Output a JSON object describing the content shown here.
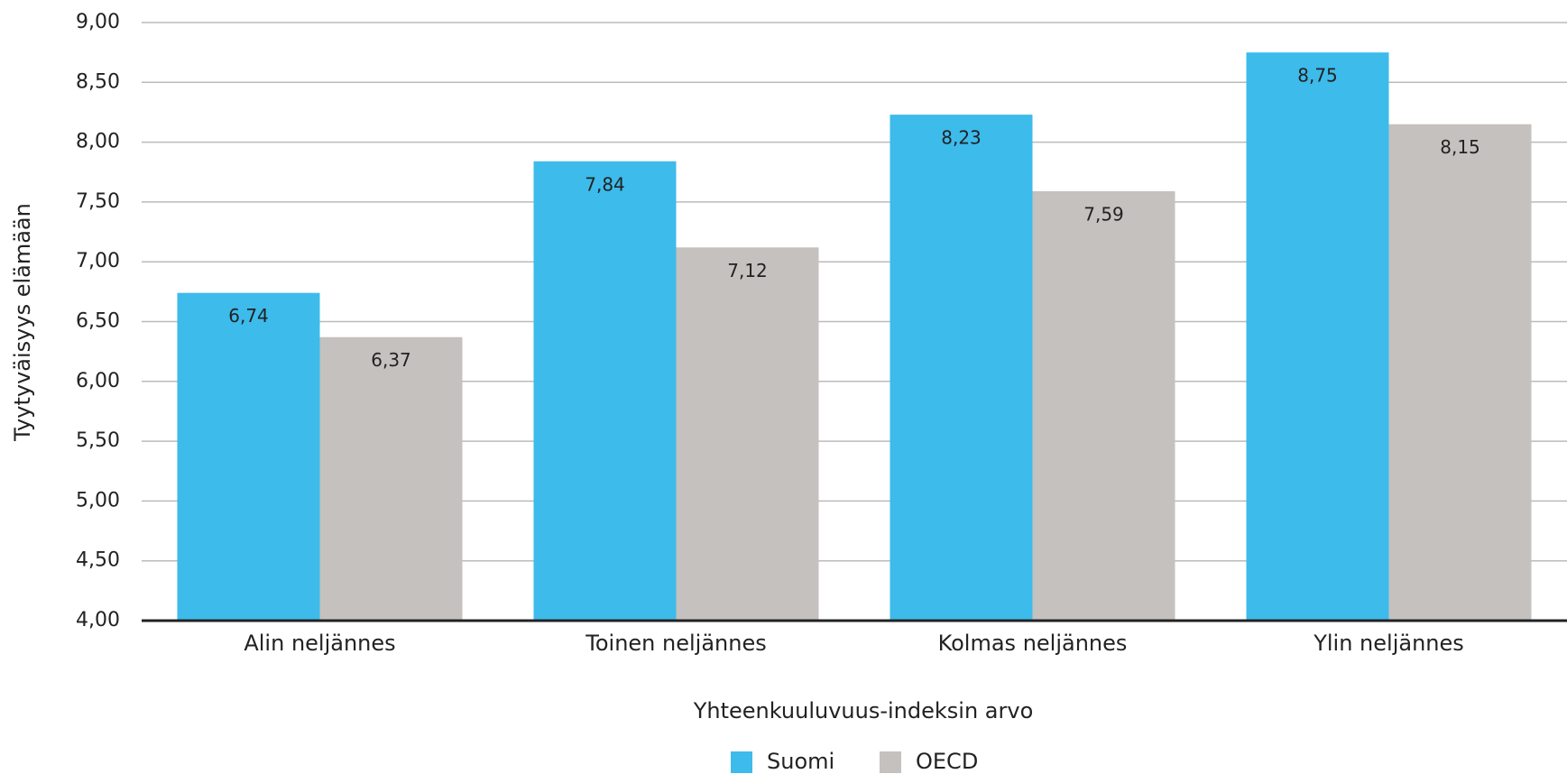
{
  "chart_data": {
    "type": "bar",
    "categories": [
      "Alin neljännes",
      "Toinen neljännes",
      "Kolmas neljännes",
      "Ylin neljännes"
    ],
    "series": [
      {
        "name": "Suomi",
        "color": "#3dbbeb",
        "values": [
          6.74,
          7.84,
          8.23,
          8.75
        ],
        "value_labels": [
          "6,74",
          "7,84",
          "8,23",
          "8,75"
        ]
      },
      {
        "name": "OECD",
        "color": "#c5c1be",
        "values": [
          6.37,
          7.12,
          7.59,
          8.15
        ],
        "value_labels": [
          "6,37",
          "7,12",
          "7,59",
          "8,15"
        ]
      }
    ],
    "xlabel": "Yhteenkuuluvuus-indeksin arvo",
    "ylabel": "Tyytyväisyys elämään",
    "ylim": [
      4,
      9
    ],
    "yticks": [
      {
        "value": 4,
        "label": "4,00"
      },
      {
        "value": 4.5,
        "label": "4,50"
      },
      {
        "value": 5,
        "label": "5,00"
      },
      {
        "value": 5.5,
        "label": "5,50"
      },
      {
        "value": 6,
        "label": "6,00"
      },
      {
        "value": 6.5,
        "label": "6,50"
      },
      {
        "value": 7,
        "label": "7,00"
      },
      {
        "value": 7.5,
        "label": "7,50"
      },
      {
        "value": 8,
        "label": "8,00"
      },
      {
        "value": 8.5,
        "label": "8,50"
      },
      {
        "value": 9,
        "label": "9,00"
      }
    ],
    "grid": true,
    "legend": "bottom"
  }
}
